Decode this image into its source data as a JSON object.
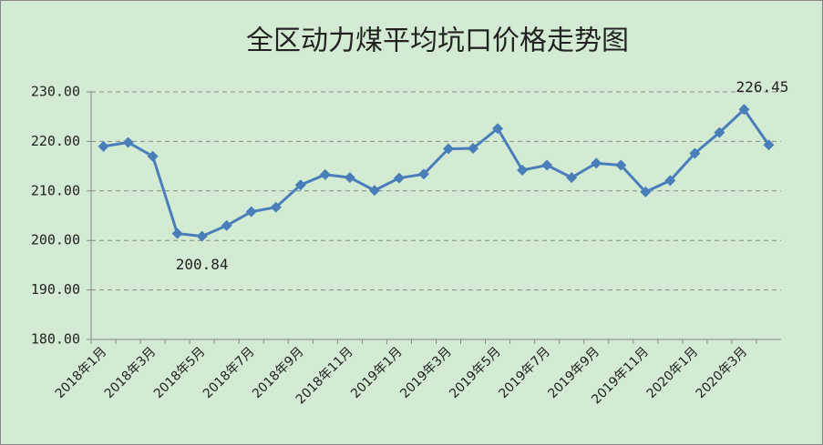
{
  "chart_data": {
    "type": "line",
    "title": "全区动力煤平均坑口价格走势图",
    "categories": [
      "2018年1月",
      null,
      "2018年3月",
      null,
      "2018年5月",
      null,
      "2018年7月",
      null,
      "2018年9月",
      null,
      "2018年11月",
      null,
      "2019年1月",
      null,
      "2019年3月",
      null,
      "2019年5月",
      null,
      "2019年7月",
      null,
      "2019年9月",
      null,
      "2019年11月",
      null,
      "2020年1月",
      null,
      "2020年3月",
      null
    ],
    "series": [
      {
        "name": "动力煤平均坑口价格",
        "color": "#4a7ebb",
        "values": [
          219.0,
          219.8,
          217.0,
          201.4,
          200.84,
          203.0,
          205.8,
          206.7,
          211.2,
          213.3,
          212.7,
          210.1,
          212.6,
          213.4,
          218.5,
          218.6,
          222.6,
          214.2,
          215.2,
          212.7,
          215.6,
          215.2,
          209.8,
          212.1,
          217.6,
          221.8,
          226.45,
          219.3
        ],
        "value_labels": [
          null,
          null,
          null,
          null,
          "200.84",
          null,
          null,
          null,
          null,
          null,
          null,
          null,
          null,
          null,
          null,
          null,
          null,
          null,
          null,
          null,
          null,
          null,
          null,
          null,
          null,
          null,
          "226.45",
          null
        ]
      }
    ],
    "ylim": [
      180,
      230
    ],
    "yticks": [
      {
        "value": 180,
        "label": "180.00"
      },
      {
        "value": 190,
        "label": "190.00"
      },
      {
        "value": 200,
        "label": "200.00"
      },
      {
        "value": 210,
        "label": "210.00"
      },
      {
        "value": 220,
        "label": "220.00"
      },
      {
        "value": 230,
        "label": "230.00"
      }
    ],
    "grid": true
  }
}
